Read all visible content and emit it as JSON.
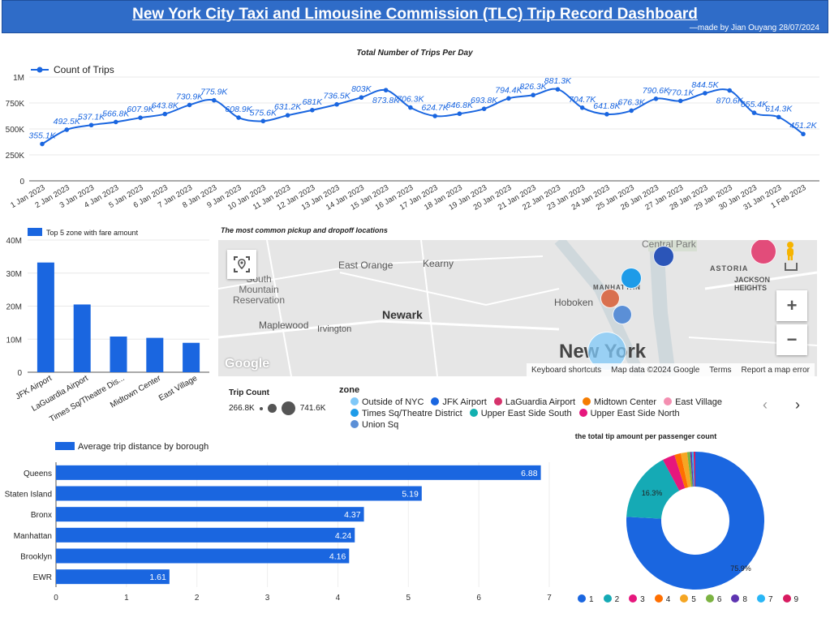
{
  "header": {
    "title": "New York City Taxi and Limousine Commission (TLC) Trip Record Dashboard",
    "credit": "—made by Jian Ouyang 28/07/2024"
  },
  "colors": {
    "header_bg": "#2f6cc8",
    "primary_blue": "#1a66e0",
    "line_label": "#1a66e0",
    "pie_colors": [
      "#1a66e0",
      "#15aab5",
      "#e6177d",
      "#ff6f00",
      "#f5a623",
      "#7cb342",
      "#5e35b1",
      "#29b6f6",
      "#d81b60"
    ]
  },
  "line_chart": {
    "title": "Total Number of Trips Per Day",
    "legend": "Count of Trips",
    "y_ticks": [
      "0",
      "250K",
      "500K",
      "750K",
      "1M"
    ]
  },
  "bar_chart": {
    "legend": "Top 5 zone with fare amount",
    "y_ticks": [
      "0",
      "10M",
      "20M",
      "30M",
      "40M"
    ]
  },
  "map": {
    "title": "The most common pickup and dropoff locations",
    "labels": {
      "central_park": "Central Park",
      "east_orange": "East Orange",
      "kearny": "Kearny",
      "astoria": "ASTORIA",
      "jackson_heights": "JACKSON\nHEIGHTS",
      "south_mountain": "South\nMountain\nReservation",
      "manhattan": "MANHATTAN",
      "hoboken": "Hoboken",
      "newark": "Newark",
      "maplewood": "Maplewood",
      "irvington": "Irvington",
      "new_york": "New York",
      "google": "Google"
    },
    "footer": {
      "shortcuts": "Keyboard shortcuts",
      "map_data": "Map data ©2024 Google",
      "terms": "Terms",
      "report": "Report a map error"
    },
    "controls": {
      "zoom_in": "+",
      "zoom_out": "−"
    },
    "trip_count": {
      "title": "Trip Count",
      "min": "266.8K",
      "max": "741.6K"
    },
    "zone_legend_title": "zone",
    "zones": [
      {
        "name": "Outside of NYC",
        "color": "#7fc8f8"
      },
      {
        "name": "JFK Airport",
        "color": "#1a66e0"
      },
      {
        "name": "LaGuardia Airport",
        "color": "#d6336c"
      },
      {
        "name": "Midtown Center",
        "color": "#f57c00"
      },
      {
        "name": "East Village",
        "color": "#f48fb1"
      },
      {
        "name": "Times Sq/Theatre District",
        "color": "#1e9be8"
      },
      {
        "name": "Upper East Side South",
        "color": "#12b0b0"
      },
      {
        "name": "Upper East Side North",
        "color": "#e6177d"
      },
      {
        "name": "Union Sq",
        "color": "#5b8fd6"
      }
    ]
  },
  "hbar_chart": {
    "legend": "Average trip distance by borough",
    "x_ticks": [
      "0",
      "1",
      "2",
      "3",
      "4",
      "5",
      "6",
      "7"
    ]
  },
  "pie_chart": {
    "title": "the total tip amount per passenger count",
    "inner_labels": [
      "75.9%",
      "16.3%"
    ]
  },
  "chart_data": [
    {
      "type": "line",
      "title": "Total Number of Trips Per Day",
      "series": [
        {
          "name": "Count of Trips",
          "values": [
            355100,
            492500,
            537100,
            566800,
            607900,
            643800,
            730900,
            775900,
            608900,
            575600,
            631200,
            681000,
            736500,
            803000,
            873800,
            706300,
            624700,
            646800,
            693800,
            794400,
            826300,
            881300,
            704700,
            641800,
            676300,
            790600,
            770100,
            844500,
            870600,
            655400,
            614300,
            451200
          ]
        }
      ],
      "labels": [
        "355.1K",
        "492.5K",
        "537.1K",
        "566.8K",
        "607.9K",
        "643.8K",
        "730.9K",
        "775.9K",
        "608.9K",
        "575.6K",
        "631.2K",
        "681K",
        "736.5K",
        "803K",
        "873.8K",
        "706.3K",
        "624.7K",
        "646.8K",
        "693.8K",
        "794.4K",
        "826.3K",
        "881.3K",
        "704.7K",
        "641.8K",
        "676.3K",
        "790.6K",
        "770.1K",
        "844.5K",
        "870.6K",
        "655.4K",
        "614.3K",
        "451.2K"
      ],
      "categories": [
        "1 Jan 2023",
        "2 Jan 2023",
        "3 Jan 2023",
        "4 Jan 2023",
        "5 Jan 2023",
        "6 Jan 2023",
        "7 Jan 2023",
        "8 Jan 2023",
        "9 Jan 2023",
        "10 Jan 2023",
        "11 Jan 2023",
        "12 Jan 2023",
        "13 Jan 2023",
        "14 Jan 2023",
        "15 Jan 2023",
        "16 Jan 2023",
        "17 Jan 2023",
        "18 Jan 2023",
        "19 Jan 2023",
        "20 Jan 2023",
        "21 Jan 2023",
        "22 Jan 2023",
        "23 Jan 2023",
        "24 Jan 2023",
        "25 Jan 2023",
        "26 Jan 2023",
        "27 Jan 2023",
        "28 Jan 2023",
        "29 Jan 2023",
        "30 Jan 2023",
        "31 Jan 2023",
        "1 Feb 2023"
      ],
      "ylim": [
        0,
        1000000
      ]
    },
    {
      "type": "bar",
      "title": "",
      "categories": [
        "JFK Airport",
        "LaGuardia Airport",
        "Times Sq/Theatre Dis...",
        "Midtown Center",
        "East Village"
      ],
      "series": [
        {
          "name": "Top 5 zone with fare amount",
          "values": [
            33200000,
            20500000,
            10800000,
            10400000,
            8900000
          ]
        }
      ],
      "ylim": [
        0,
        40000000
      ]
    },
    {
      "type": "bar",
      "orientation": "horizontal",
      "title": "",
      "categories": [
        "Queens",
        "Staten Island",
        "Bronx",
        "Manhattan",
        "Brooklyn",
        "EWR"
      ],
      "series": [
        {
          "name": "Average trip distance by borough",
          "values": [
            6.88,
            5.19,
            4.37,
            4.24,
            4.16,
            1.61
          ]
        }
      ],
      "labels": [
        "6.88",
        "5.19",
        "4.37",
        "4.24",
        "4.16",
        "1.61"
      ],
      "xlim": [
        0,
        7
      ]
    },
    {
      "type": "pie",
      "title": "the total tip amount per passenger count",
      "categories": [
        "1",
        "2",
        "3",
        "4",
        "5",
        "6",
        "8",
        "7",
        "9"
      ],
      "values": [
        75.9,
        16.3,
        2.9,
        1.5,
        1.5,
        0.7,
        0.4,
        0.4,
        0.4
      ],
      "donut": true
    }
  ]
}
